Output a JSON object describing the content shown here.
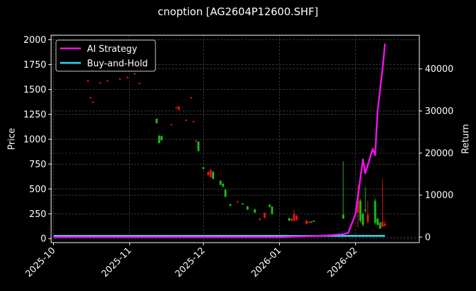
{
  "title": "cnoption [AG2604P12600.SHF]",
  "colors": {
    "background": "#000000",
    "axes": "#ffffff",
    "grid": "#555555",
    "up": "#1db91d",
    "down": "#e01515",
    "ai_strategy": "#ee11ee",
    "buy_and_hold": "#22e0f0"
  },
  "chart_data": {
    "type": "line",
    "title": "cnoption [AG2604P12600.SHF]",
    "xlabel": "",
    "ylabel": "Price",
    "y2label": "Return",
    "xlim": [
      "2025-09-30",
      "2026-02-27"
    ],
    "ylim": [
      -40,
      2045
    ],
    "y2lim": [
      -1300,
      48000
    ],
    "x_ticks": [
      "2025-10",
      "2025-11",
      "2025-12",
      "2026-01",
      "2026-02"
    ],
    "y_ticks": [
      0,
      250,
      500,
      750,
      1000,
      1250,
      1500,
      1750,
      2000
    ],
    "y2_ticks": [
      0,
      10000,
      20000,
      30000,
      40000
    ],
    "grid": true,
    "legend": {
      "position": "upper left",
      "entries": [
        "AI Strategy",
        "Buy-and-Hold"
      ]
    },
    "candles_columns": [
      "date",
      "open",
      "high",
      "low",
      "close"
    ],
    "candles": [
      [
        "2025-10-15",
        1590,
        1595,
        1585,
        1588
      ],
      [
        "2025-10-16",
        1420,
        1425,
        1415,
        1418
      ],
      [
        "2025-10-17",
        1375,
        1380,
        1370,
        1372
      ],
      [
        "2025-10-20",
        1570,
        1575,
        1565,
        1568
      ],
      [
        "2025-10-23",
        1590,
        1595,
        1585,
        1588
      ],
      [
        "2025-10-28",
        1610,
        1615,
        1605,
        1608
      ],
      [
        "2025-10-31",
        1625,
        1630,
        1620,
        1622
      ],
      [
        "2025-11-03",
        1660,
        1665,
        1655,
        1658
      ],
      [
        "2025-11-05",
        1565,
        1570,
        1560,
        1562
      ],
      [
        "2025-11-12",
        1160,
        1210,
        1160,
        1205
      ],
      [
        "2025-11-13",
        960,
        1040,
        960,
        1035
      ],
      [
        "2025-11-14",
        990,
        1040,
        985,
        1030
      ],
      [
        "2025-11-18",
        1150,
        1155,
        1145,
        1148
      ],
      [
        "2025-11-20",
        1320,
        1325,
        1310,
        1318
      ],
      [
        "2025-11-21",
        1330,
        1330,
        1290,
        1295
      ],
      [
        "2025-11-24",
        1195,
        1200,
        1190,
        1192
      ],
      [
        "2025-11-26",
        1420,
        1425,
        1415,
        1418
      ],
      [
        "2025-11-27",
        1180,
        1185,
        1175,
        1178
      ],
      [
        "2025-11-28",
        985,
        995,
        970,
        975
      ],
      [
        "2025-11-29",
        880,
        980,
        880,
        975
      ],
      [
        "2025-12-01",
        700,
        720,
        700,
        718
      ],
      [
        "2025-12-03",
        670,
        680,
        630,
        640
      ],
      [
        "2025-12-04",
        690,
        700,
        610,
        620
      ],
      [
        "2025-12-05",
        600,
        680,
        600,
        670
      ],
      [
        "2025-12-08",
        540,
        590,
        540,
        580
      ],
      [
        "2025-12-09",
        520,
        560,
        520,
        550
      ],
      [
        "2025-12-10",
        420,
        500,
        420,
        490
      ],
      [
        "2025-12-12",
        330,
        350,
        330,
        345
      ],
      [
        "2025-12-15",
        375,
        380,
        370,
        372
      ],
      [
        "2025-12-17",
        345,
        360,
        345,
        352
      ],
      [
        "2025-12-19",
        290,
        330,
        290,
        325
      ],
      [
        "2025-12-22",
        260,
        300,
        260,
        295
      ],
      [
        "2025-12-24",
        200,
        210,
        180,
        190
      ],
      [
        "2025-12-26",
        260,
        260,
        200,
        210
      ],
      [
        "2025-12-28",
        320,
        350,
        310,
        340
      ],
      [
        "2025-12-29",
        250,
        330,
        240,
        320
      ],
      [
        "2026-01-05",
        180,
        210,
        180,
        205
      ],
      [
        "2026-01-06",
        200,
        205,
        175,
        180
      ],
      [
        "2026-01-07",
        250,
        290,
        170,
        180
      ],
      [
        "2026-01-08",
        230,
        240,
        180,
        185
      ],
      [
        "2026-01-12",
        180,
        190,
        140,
        150
      ],
      [
        "2026-01-13",
        165,
        180,
        160,
        162
      ],
      [
        "2026-01-14",
        160,
        175,
        160,
        172
      ],
      [
        "2026-01-15",
        170,
        185,
        168,
        180
      ],
      [
        "2026-01-27",
        200,
        780,
        200,
        240
      ],
      [
        "2026-02-02",
        420,
        540,
        110,
        260
      ],
      [
        "2026-02-03",
        180,
        400,
        160,
        380
      ],
      [
        "2026-02-04",
        140,
        260,
        120,
        250
      ],
      [
        "2026-02-05",
        280,
        520,
        260,
        290
      ],
      [
        "2026-02-06",
        240,
        380,
        150,
        170
      ],
      [
        "2026-02-09",
        160,
        400,
        140,
        380
      ],
      [
        "2026-02-10",
        140,
        210,
        130,
        200
      ],
      [
        "2026-02-11",
        100,
        170,
        100,
        160
      ],
      [
        "2026-02-12",
        170,
        600,
        110,
        120
      ],
      [
        "2026-02-13",
        150,
        180,
        120,
        130
      ]
    ],
    "series": [
      {
        "name": "AI Strategy",
        "axis": "right",
        "x": [
          "2025-10-01",
          "2026-01-01",
          "2026-01-12",
          "2026-01-20",
          "2026-01-27",
          "2026-01-29",
          "2026-02-01",
          "2026-02-04",
          "2026-02-05",
          "2026-02-08",
          "2026-02-09",
          "2026-02-10",
          "2026-02-11",
          "2026-02-12",
          "2026-02-13"
        ],
        "values": [
          0,
          0,
          200,
          400,
          700,
          1000,
          5500,
          18500,
          15200,
          21000,
          19500,
          30000,
          35000,
          40000,
          46000
        ]
      },
      {
        "name": "Buy-and-Hold",
        "axis": "right",
        "x": [
          "2025-10-01",
          "2026-02-13"
        ],
        "values": [
          300,
          300
        ]
      }
    ]
  }
}
